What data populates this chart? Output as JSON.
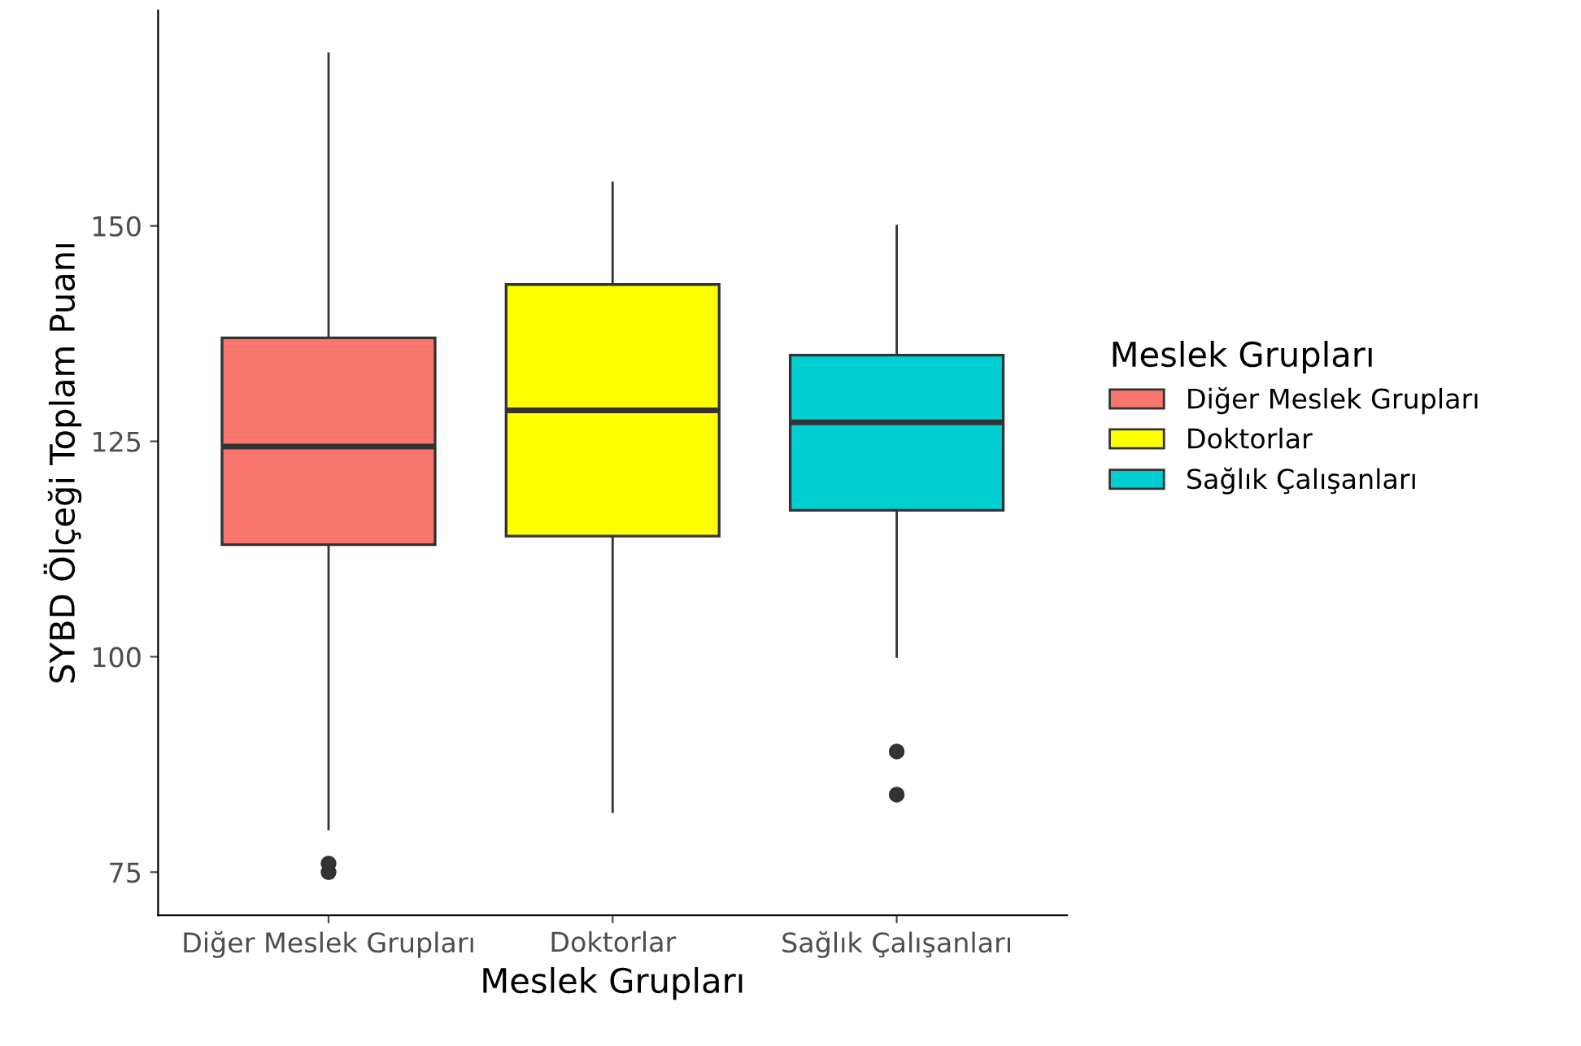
{
  "chart_data": {
    "type": "box",
    "xlabel": "Meslek Grupları",
    "ylabel": "SYBD Ölçeği Toplam Puanı",
    "legend_title": "Meslek Grupları",
    "categories": [
      "Diğer Meslek Grupları",
      "Doktorlar",
      "Sağlık Çalışanları"
    ],
    "series": [
      {
        "name": "Diğer Meslek Grupları",
        "color": "#f8766d",
        "boxes": [
          {
            "low": 80,
            "q1": 113,
            "median": 124.4,
            "q3": 137,
            "high": 170,
            "outliers": [
              75,
              76
            ]
          },
          null,
          null
        ]
      },
      {
        "name": "Doktorlar",
        "color": "#ffff00",
        "boxes": [
          null,
          {
            "low": 82,
            "q1": 114,
            "median": 128.6,
            "q3": 143.2,
            "high": 155
          },
          null
        ]
      },
      {
        "name": "Sağlık Çalışanları",
        "color": "#00ced1",
        "boxes": [
          null,
          null,
          {
            "low": 100,
            "q1": 117,
            "median": 127.2,
            "q3": 135,
            "high": 150,
            "outliers": [
              84,
              89
            ]
          }
        ]
      }
    ],
    "ylim": [
      70,
      175
    ],
    "yticks": [
      75,
      100,
      125,
      150
    ],
    "grid": false,
    "legend": "right"
  }
}
